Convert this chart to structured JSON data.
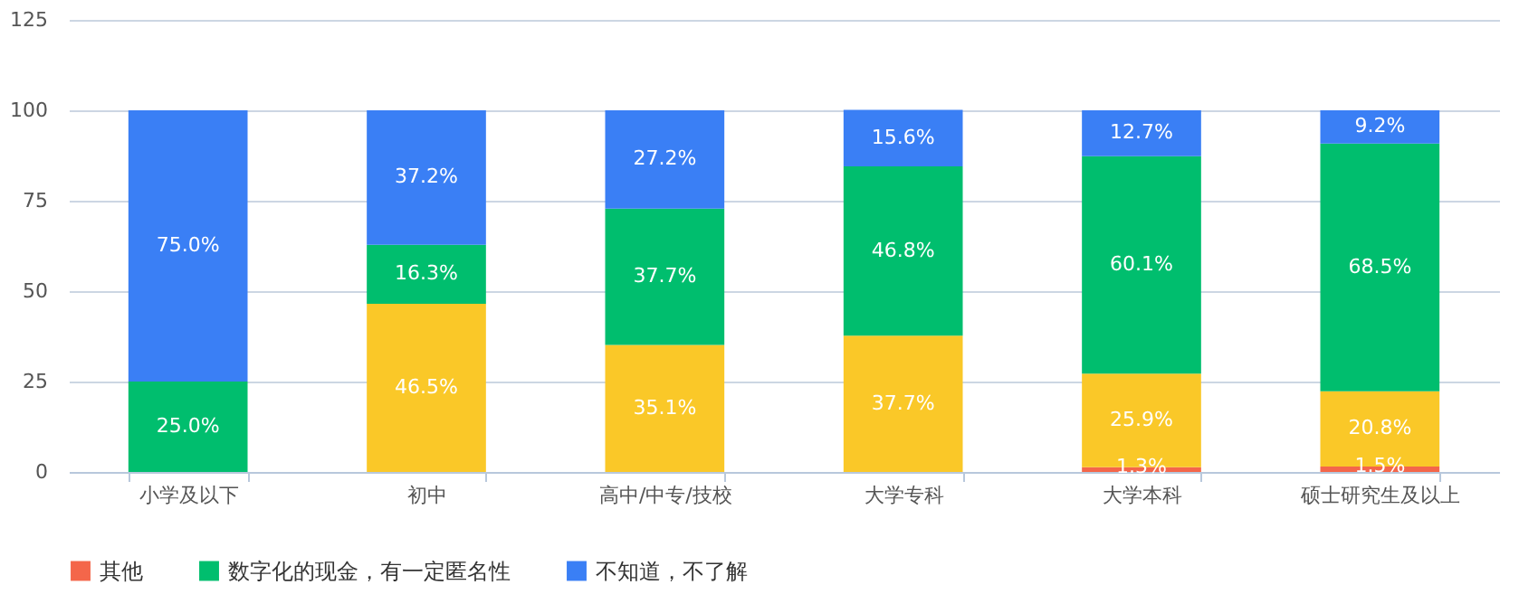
{
  "chart_data": {
    "type": "bar",
    "stacked": true,
    "categories": [
      "小学及以下",
      "初中",
      "高中/中专/技校",
      "大学专科",
      "大学本科",
      "硕士研究生及以上"
    ],
    "series": [
      {
        "name": "其他",
        "color": "#f4664a",
        "values": [
          0,
          0,
          0,
          0,
          1.3,
          1.5
        ],
        "value_labels": [
          null,
          null,
          null,
          null,
          "1.3%",
          "1.5%"
        ]
      },
      {
        "color": "#fac828",
        "values": [
          0,
          46.5,
          35.1,
          37.7,
          25.9,
          20.8
        ],
        "value_labels": [
          null,
          "46.5%",
          "35.1%",
          "37.7%",
          "25.9%",
          "20.8%"
        ]
      },
      {
        "name": "数字化的现金，有一定匿名性",
        "color": "#00be6e",
        "values": [
          25.0,
          16.3,
          37.7,
          46.8,
          60.1,
          68.5
        ],
        "value_labels": [
          "25.0%",
          "16.3%",
          "37.7%",
          "46.8%",
          "60.1%",
          "68.5%"
        ]
      },
      {
        "name": "不知道，不了解",
        "color": "#3a7ff5",
        "values": [
          75.0,
          37.2,
          27.2,
          15.6,
          12.7,
          9.2
        ],
        "value_labels": [
          "75.0%",
          "37.2%",
          "27.2%",
          "15.6%",
          "12.7%",
          "9.2%"
        ]
      }
    ],
    "ylim": [
      0,
      125
    ],
    "yticks": [
      0,
      25,
      50,
      75,
      100,
      125
    ],
    "grid": "y",
    "legend": "bottom"
  }
}
